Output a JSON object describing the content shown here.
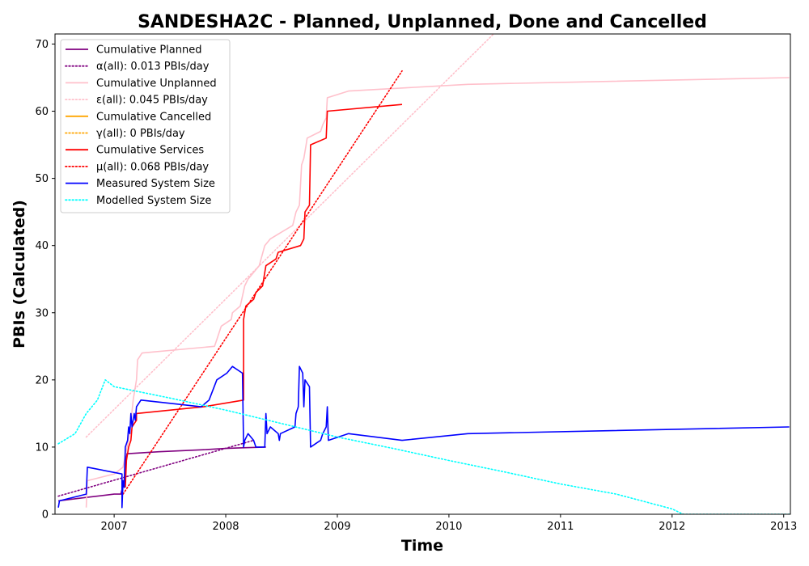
{
  "chart_data": {
    "type": "line",
    "title": "SANDESHA2C - Planned, Unplanned, Done  and Cancelled",
    "xlabel": "Time",
    "ylabel": "PBIs (Calculated)",
    "xlim": [
      2006.47,
      2013.06
    ],
    "ylim": [
      0,
      71.5
    ],
    "x_ticks": [
      2007,
      2008,
      2009,
      2010,
      2011,
      2012,
      2013
    ],
    "y_ticks": [
      0,
      10,
      20,
      30,
      40,
      50,
      60,
      70
    ],
    "grid": false,
    "legend_position": "upper-left",
    "series": [
      {
        "name": "Cumulative Planned",
        "style": "solid",
        "color": "#800080",
        "points": [
          [
            2006.5,
            2
          ],
          [
            2006.75,
            2.5
          ],
          [
            2007.0,
            3
          ],
          [
            2007.06,
            3
          ],
          [
            2007.09,
            5
          ],
          [
            2007.11,
            9
          ],
          [
            2007.4,
            9.3
          ],
          [
            2007.8,
            9.6
          ],
          [
            2008.0,
            9.8
          ],
          [
            2008.15,
            9.9
          ],
          [
            2008.36,
            10
          ]
        ]
      },
      {
        "name": "α(all): 0.013 PBIs/day",
        "style": "dotted",
        "color": "#800080",
        "points": [
          [
            2006.5,
            2.7
          ],
          [
            2008.25,
            11.0
          ]
        ]
      },
      {
        "name": "Cumulative Unplanned",
        "style": "solid",
        "color": "#ffc0cb",
        "points": [
          [
            2006.75,
            1
          ],
          [
            2006.76,
            5
          ],
          [
            2007.0,
            6
          ],
          [
            2007.08,
            7
          ],
          [
            2007.14,
            12
          ],
          [
            2007.17,
            17
          ],
          [
            2007.2,
            20
          ],
          [
            2007.21,
            23
          ],
          [
            2007.25,
            24
          ],
          [
            2007.9,
            25
          ],
          [
            2007.92,
            26
          ],
          [
            2007.96,
            28
          ],
          [
            2008.05,
            29
          ],
          [
            2008.06,
            30
          ],
          [
            2008.13,
            31
          ],
          [
            2008.17,
            34
          ],
          [
            2008.2,
            35
          ],
          [
            2008.3,
            37
          ],
          [
            2008.35,
            40
          ],
          [
            2008.4,
            41
          ],
          [
            2008.5,
            42
          ],
          [
            2008.6,
            43
          ],
          [
            2008.63,
            45
          ],
          [
            2008.66,
            46
          ],
          [
            2008.68,
            52
          ],
          [
            2008.7,
            53
          ],
          [
            2008.71,
            54
          ],
          [
            2008.72,
            55
          ],
          [
            2008.73,
            56
          ],
          [
            2008.85,
            57
          ],
          [
            2008.87,
            58
          ],
          [
            2008.9,
            59
          ],
          [
            2008.91,
            62
          ],
          [
            2009.1,
            63
          ],
          [
            2010.17,
            64
          ],
          [
            2013.05,
            65
          ]
        ]
      },
      {
        "name": "ε(all): 0.045 PBIs/day",
        "style": "dotted",
        "color": "#ffc0cb",
        "points": [
          [
            2006.75,
            11.5
          ],
          [
            2010.4,
            71.5
          ]
        ]
      },
      {
        "name": "Cumulative Cancelled",
        "style": "solid",
        "color": "#ffa500",
        "points": []
      },
      {
        "name": "γ(all): 0 PBIs/day",
        "style": "dotted",
        "color": "#ffa500",
        "points": []
      },
      {
        "name": "Cumulative Services",
        "style": "solid",
        "color": "#ff0000",
        "points": [
          [
            2007.1,
            4
          ],
          [
            2007.11,
            8
          ],
          [
            2007.13,
            10
          ],
          [
            2007.15,
            11
          ],
          [
            2007.16,
            13
          ],
          [
            2007.2,
            14
          ],
          [
            2007.2,
            15
          ],
          [
            2007.8,
            16
          ],
          [
            2008.16,
            17
          ],
          [
            2008.16,
            29
          ],
          [
            2008.17,
            30
          ],
          [
            2008.18,
            31
          ],
          [
            2008.25,
            32
          ],
          [
            2008.27,
            33
          ],
          [
            2008.33,
            34
          ],
          [
            2008.35,
            36
          ],
          [
            2008.36,
            37
          ],
          [
            2008.45,
            38
          ],
          [
            2008.47,
            39
          ],
          [
            2008.67,
            40
          ],
          [
            2008.7,
            41
          ],
          [
            2008.71,
            45
          ],
          [
            2008.75,
            46
          ],
          [
            2008.76,
            55
          ],
          [
            2008.9,
            56
          ],
          [
            2008.91,
            60
          ],
          [
            2009.58,
            61
          ]
        ]
      },
      {
        "name": "μ(all): 0.068 PBIs/day",
        "style": "dotted",
        "color": "#ff0000",
        "points": [
          [
            2007.08,
            3.0
          ],
          [
            2009.58,
            66.0
          ]
        ]
      },
      {
        "name": "Measured System Size",
        "style": "solid",
        "color": "#0000ff",
        "points": [
          [
            2006.5,
            1
          ],
          [
            2006.51,
            2
          ],
          [
            2006.75,
            3
          ],
          [
            2006.76,
            7
          ],
          [
            2007.07,
            6
          ],
          [
            2007.07,
            1
          ],
          [
            2007.08,
            5
          ],
          [
            2007.09,
            4
          ],
          [
            2007.1,
            10
          ],
          [
            2007.12,
            11
          ],
          [
            2007.13,
            13
          ],
          [
            2007.14,
            12
          ],
          [
            2007.15,
            15
          ],
          [
            2007.16,
            13
          ],
          [
            2007.18,
            15
          ],
          [
            2007.19,
            14
          ],
          [
            2007.2,
            16
          ],
          [
            2007.24,
            17
          ],
          [
            2007.78,
            16
          ],
          [
            2007.85,
            17
          ],
          [
            2007.92,
            20
          ],
          [
            2008.01,
            21
          ],
          [
            2008.06,
            22
          ],
          [
            2008.15,
            21
          ],
          [
            2008.16,
            10
          ],
          [
            2008.17,
            11
          ],
          [
            2008.2,
            12
          ],
          [
            2008.25,
            11
          ],
          [
            2008.27,
            10
          ],
          [
            2008.35,
            10
          ],
          [
            2008.36,
            15
          ],
          [
            2008.37,
            12
          ],
          [
            2008.4,
            13
          ],
          [
            2008.47,
            12
          ],
          [
            2008.48,
            11
          ],
          [
            2008.49,
            12
          ],
          [
            2008.62,
            13
          ],
          [
            2008.63,
            15
          ],
          [
            2008.65,
            16
          ],
          [
            2008.66,
            22
          ],
          [
            2008.69,
            21
          ],
          [
            2008.7,
            16
          ],
          [
            2008.71,
            20
          ],
          [
            2008.75,
            19
          ],
          [
            2008.76,
            10
          ],
          [
            2008.85,
            11
          ],
          [
            2008.87,
            12
          ],
          [
            2008.9,
            13
          ],
          [
            2008.91,
            16
          ],
          [
            2008.92,
            11
          ],
          [
            2009.1,
            12
          ],
          [
            2009.58,
            11
          ],
          [
            2010.17,
            12
          ],
          [
            2013.05,
            13
          ]
        ]
      },
      {
        "name": "Modelled System Size",
        "style": "dotted",
        "color": "#00ffff",
        "points": [
          [
            2006.5,
            10.5
          ],
          [
            2006.65,
            12
          ],
          [
            2006.75,
            15
          ],
          [
            2006.85,
            17
          ],
          [
            2006.92,
            20
          ],
          [
            2007.0,
            19
          ],
          [
            2007.5,
            17.3
          ],
          [
            2008.0,
            15.5
          ],
          [
            2008.5,
            13.5
          ],
          [
            2009.0,
            11.5
          ],
          [
            2009.5,
            9.8
          ],
          [
            2010.0,
            8.0
          ],
          [
            2010.5,
            6.3
          ],
          [
            2011.0,
            4.5
          ],
          [
            2011.5,
            3.0
          ],
          [
            2012.0,
            0.8
          ],
          [
            2012.1,
            0
          ],
          [
            2013.05,
            0
          ]
        ]
      }
    ]
  }
}
